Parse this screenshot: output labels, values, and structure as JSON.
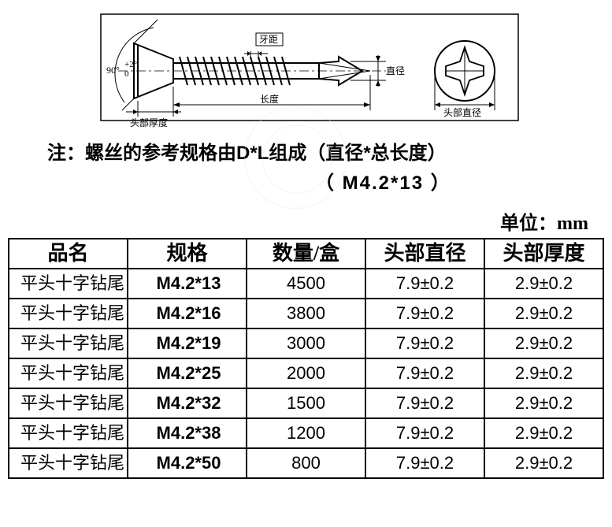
{
  "diagram": {
    "labels": {
      "angle": "90°",
      "angle_tol": "+2°\n 0",
      "thread_pitch": "牙距",
      "diameter": "直径",
      "length": "长度",
      "head_thickness": "头部厚度",
      "head_diameter": "头部直径"
    },
    "stroke": "#000000",
    "fill_none": "none"
  },
  "note": {
    "line1": "注：螺丝的参考规格由D*L组成（直径*总长度）",
    "line2": "（  M4.2*13  ）"
  },
  "unit_label": "单位：mm",
  "table": {
    "headers": {
      "name": "品名",
      "spec": "规格",
      "qty": "数量/盒",
      "head_dia": "头部直径",
      "head_thk": "头部厚度"
    },
    "rows": [
      {
        "name": "平头十字钻尾",
        "spec": "M4.2*13",
        "qty": "4500",
        "hd": "7.9±0.2",
        "ht": "2.9±0.2"
      },
      {
        "name": "平头十字钻尾",
        "spec": "M4.2*16",
        "qty": "3800",
        "hd": "7.9±0.2",
        "ht": "2.9±0.2"
      },
      {
        "name": "平头十字钻尾",
        "spec": "M4.2*19",
        "qty": "3000",
        "hd": "7.9±0.2",
        "ht": "2.9±0.2"
      },
      {
        "name": "平头十字钻尾",
        "spec": "M4.2*25",
        "qty": "2000",
        "hd": "7.9±0.2",
        "ht": "2.9±0.2"
      },
      {
        "name": "平头十字钻尾",
        "spec": "M4.2*32",
        "qty": "1500",
        "hd": "7.9±0.2",
        "ht": "2.9±0.2"
      },
      {
        "name": "平头十字钻尾",
        "spec": "M4.2*38",
        "qty": "1200",
        "hd": "7.9±0.2",
        "ht": "2.9±0.2"
      },
      {
        "name": "平头十字钻尾",
        "spec": "M4.2*50",
        "qty": "800",
        "hd": "7.9±0.2",
        "ht": "2.9±0.2"
      }
    ]
  },
  "colors": {
    "text": "#000000",
    "border": "#000000",
    "bg": "#ffffff",
    "watermark": "#e6e6e6"
  }
}
